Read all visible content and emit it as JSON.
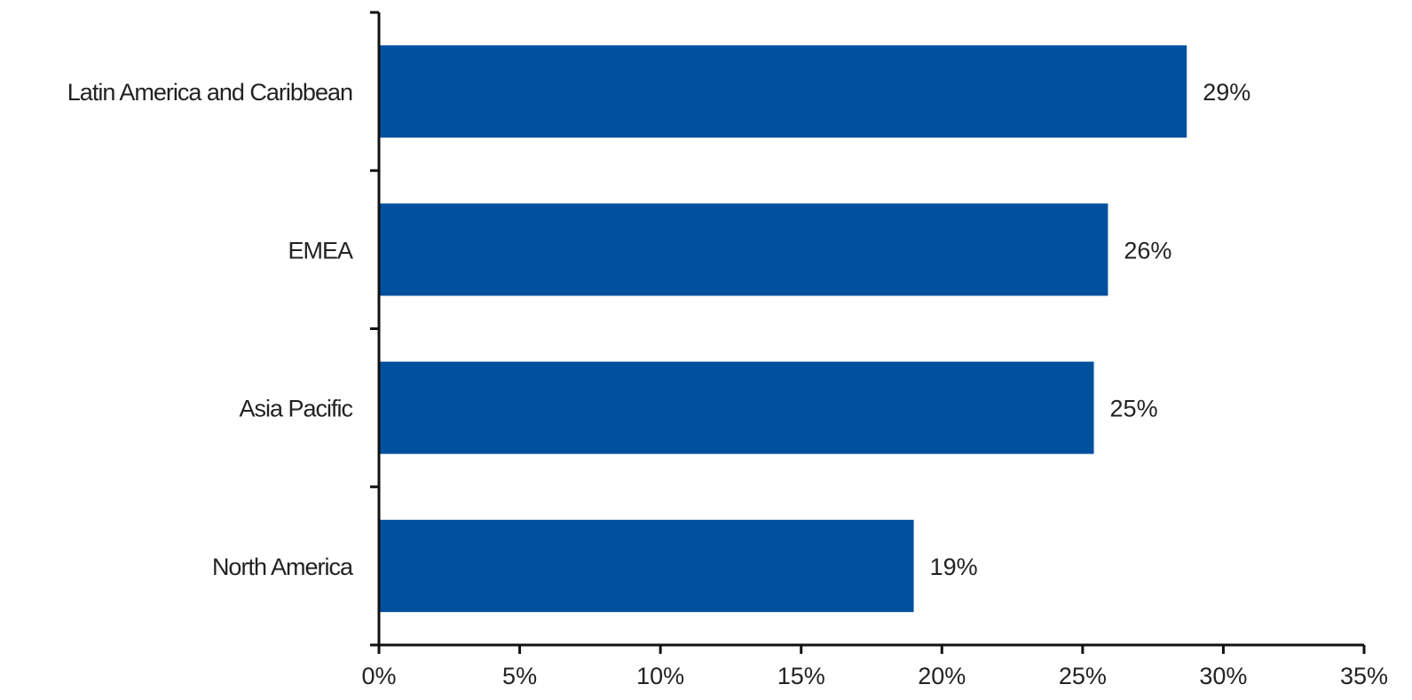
{
  "chart_data": {
    "type": "bar",
    "orientation": "horizontal",
    "title": "",
    "xlabel": "",
    "ylabel": "",
    "categories": [
      "Latin America and Caribbean",
      "EMEA",
      "Asia Pacific",
      "North America"
    ],
    "values": [
      0.287,
      0.259,
      0.254,
      0.19
    ],
    "data_labels": [
      "29%",
      "26%",
      "25%",
      "19%"
    ],
    "xlim": [
      0,
      0.35
    ],
    "x_ticks": [
      0,
      0.05,
      0.1,
      0.15,
      0.2,
      0.25,
      0.3,
      0.35
    ],
    "x_tick_labels": [
      "0%",
      "5%",
      "10%",
      "15%",
      "20%",
      "25%",
      "30%",
      "35%"
    ],
    "bar_color": "#00509E",
    "grid": false,
    "legend": "none"
  }
}
